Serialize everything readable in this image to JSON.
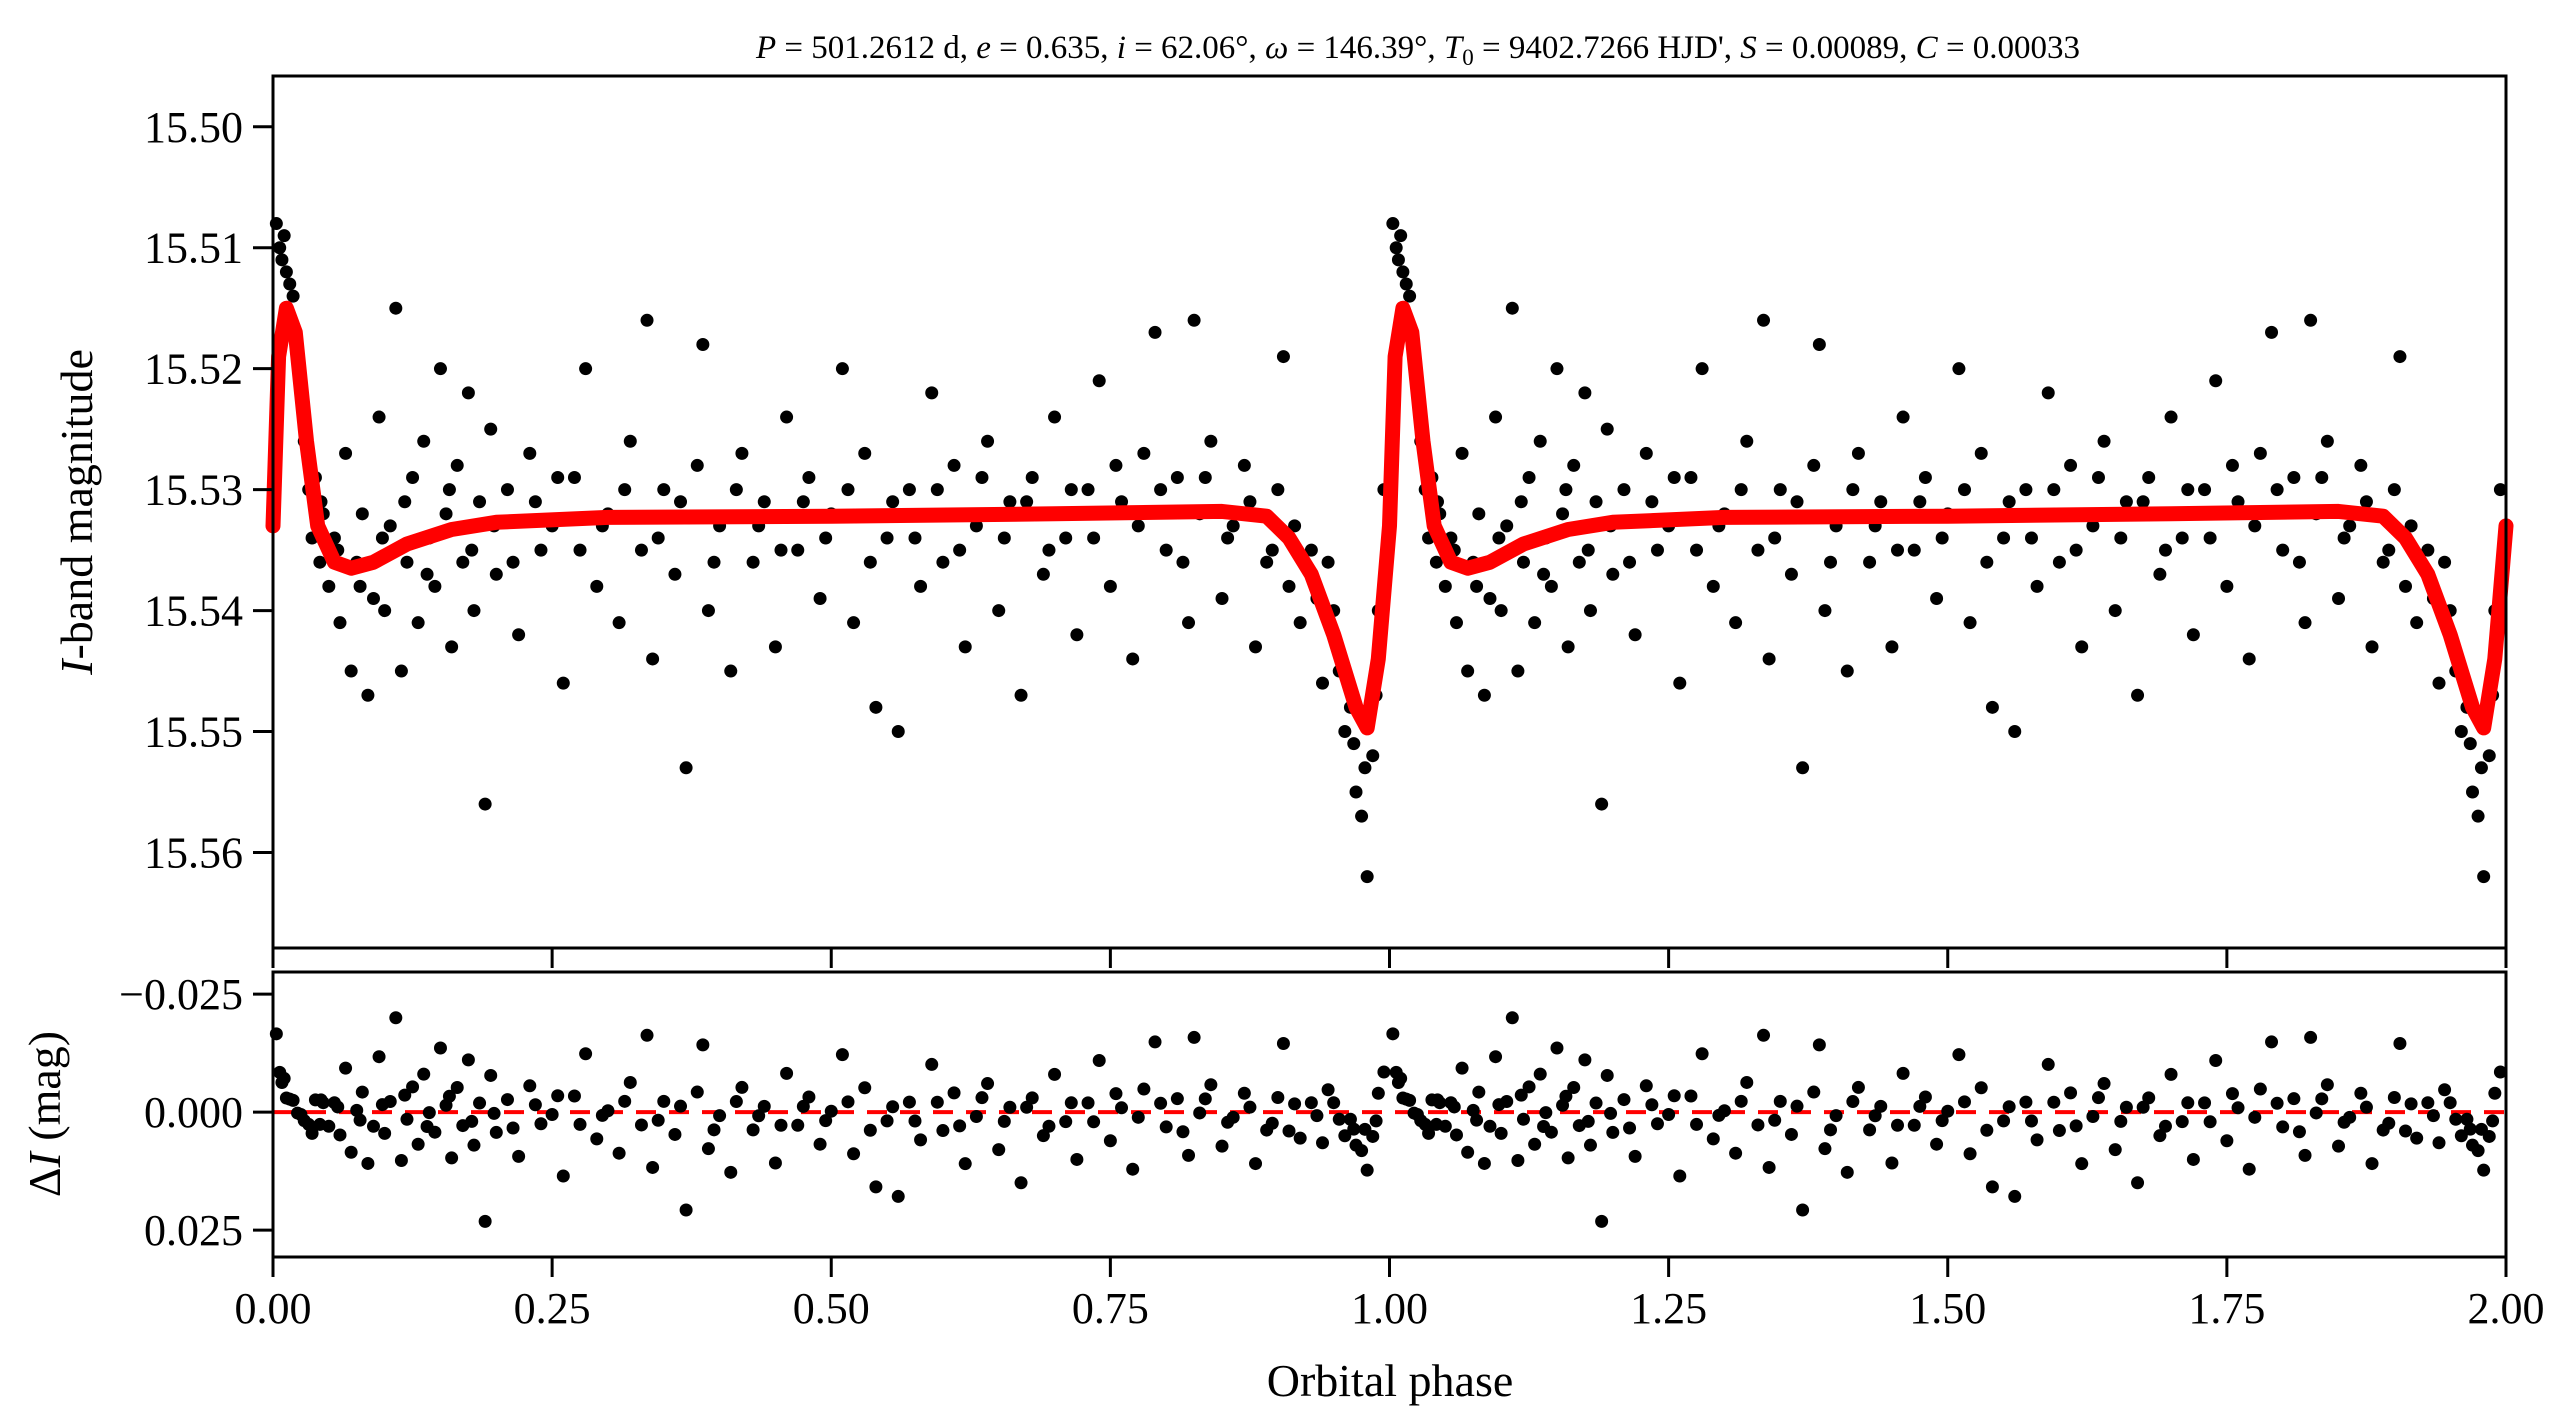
{
  "chart_data": [
    {
      "type": "scatter",
      "panel": "light-curve",
      "title_parts": [
        {
          "t": "P",
          "i": true
        },
        {
          "t": " = 501.2612 d, "
        },
        {
          "t": "e",
          "i": true
        },
        {
          "t": " = 0.635, "
        },
        {
          "t": "i",
          "i": true
        },
        {
          "t": " = 62.06°, "
        },
        {
          "t": "ω",
          "i": true
        },
        {
          "t": " = 146.39°, "
        },
        {
          "t": "T",
          "i": true
        },
        {
          "t": "0",
          "sub": true
        },
        {
          "t": " = 9402.7266 HJD', "
        },
        {
          "t": "S",
          "i": true
        },
        {
          "t": " = 0.00089, "
        },
        {
          "t": "C",
          "i": true
        },
        {
          "t": " = 0.00033"
        }
      ],
      "ylabel_italic": "I",
      "ylabel_rest": "-band magnitude",
      "xlim": [
        0,
        2
      ],
      "ylim": [
        15.5679,
        15.4958
      ],
      "y_inverted": true,
      "yticks": [
        15.5,
        15.51,
        15.52,
        15.53,
        15.54,
        15.55,
        15.56
      ],
      "ytick_labels": [
        "15.50",
        "15.51",
        "15.52",
        "15.53",
        "15.54",
        "15.55",
        "15.56"
      ],
      "xticks": [
        0,
        0.25,
        0.5,
        0.75,
        1.0,
        1.25,
        1.5,
        1.75,
        2.0
      ],
      "point_color": "#000000",
      "model_color": "#ff0000",
      "phase_repeat": [
        0,
        1
      ],
      "observations": [
        [
          0.003,
          15.508
        ],
        [
          0.006,
          15.51
        ],
        [
          0.008,
          15.511
        ],
        [
          0.01,
          15.509
        ],
        [
          0.012,
          15.512
        ],
        [
          0.015,
          15.513
        ],
        [
          0.018,
          15.514
        ],
        [
          0.022,
          15.519
        ],
        [
          0.025,
          15.522
        ],
        [
          0.028,
          15.526
        ],
        [
          0.032,
          15.53
        ],
        [
          0.035,
          15.534
        ],
        [
          0.038,
          15.529
        ],
        [
          0.042,
          15.536
        ],
        [
          0.045,
          15.532
        ],
        [
          0.05,
          15.538
        ],
        [
          0.055,
          15.534
        ],
        [
          0.06,
          15.541
        ],
        [
          0.065,
          15.527
        ],
        [
          0.07,
          15.545
        ],
        [
          0.075,
          15.536
        ],
        [
          0.08,
          15.532
        ],
        [
          0.085,
          15.547
        ],
        [
          0.09,
          15.539
        ],
        [
          0.095,
          15.524
        ],
        [
          0.1,
          15.54
        ],
        [
          0.105,
          15.533
        ],
        [
          0.11,
          15.515
        ],
        [
          0.115,
          15.545
        ],
        [
          0.12,
          15.536
        ],
        [
          0.125,
          15.529
        ],
        [
          0.13,
          15.541
        ],
        [
          0.135,
          15.526
        ],
        [
          0.14,
          15.534
        ],
        [
          0.145,
          15.538
        ],
        [
          0.15,
          15.52
        ],
        [
          0.155,
          15.532
        ],
        [
          0.16,
          15.543
        ],
        [
          0.165,
          15.528
        ],
        [
          0.17,
          15.536
        ],
        [
          0.175,
          15.522
        ],
        [
          0.18,
          15.54
        ],
        [
          0.185,
          15.531
        ],
        [
          0.19,
          15.556
        ],
        [
          0.195,
          15.525
        ],
        [
          0.2,
          15.537
        ],
        [
          0.21,
          15.53
        ],
        [
          0.22,
          15.542
        ],
        [
          0.23,
          15.527
        ],
        [
          0.24,
          15.535
        ],
        [
          0.25,
          15.533
        ],
        [
          0.26,
          15.546
        ],
        [
          0.27,
          15.529
        ],
        [
          0.28,
          15.52
        ],
        [
          0.29,
          15.538
        ],
        [
          0.3,
          15.532
        ],
        [
          0.31,
          15.541
        ],
        [
          0.32,
          15.526
        ],
        [
          0.33,
          15.535
        ],
        [
          0.335,
          15.516
        ],
        [
          0.34,
          15.544
        ],
        [
          0.35,
          15.53
        ],
        [
          0.36,
          15.537
        ],
        [
          0.37,
          15.553
        ],
        [
          0.38,
          15.528
        ],
        [
          0.385,
          15.518
        ],
        [
          0.39,
          15.54
        ],
        [
          0.4,
          15.533
        ],
        [
          0.41,
          15.545
        ],
        [
          0.42,
          15.527
        ],
        [
          0.43,
          15.536
        ],
        [
          0.44,
          15.531
        ],
        [
          0.45,
          15.543
        ],
        [
          0.46,
          15.524
        ],
        [
          0.47,
          15.535
        ],
        [
          0.48,
          15.529
        ],
        [
          0.49,
          15.539
        ],
        [
          0.5,
          15.532
        ],
        [
          0.51,
          15.52
        ],
        [
          0.52,
          15.541
        ],
        [
          0.53,
          15.527
        ],
        [
          0.54,
          15.548
        ],
        [
          0.55,
          15.534
        ],
        [
          0.56,
          15.55
        ],
        [
          0.57,
          15.53
        ],
        [
          0.58,
          15.538
        ],
        [
          0.59,
          15.522
        ],
        [
          0.6,
          15.536
        ],
        [
          0.61,
          15.528
        ],
        [
          0.62,
          15.543
        ],
        [
          0.63,
          15.533
        ],
        [
          0.64,
          15.526
        ],
        [
          0.65,
          15.54
        ],
        [
          0.66,
          15.531
        ],
        [
          0.67,
          15.547
        ],
        [
          0.68,
          15.529
        ],
        [
          0.69,
          15.537
        ],
        [
          0.7,
          15.524
        ],
        [
          0.71,
          15.534
        ],
        [
          0.72,
          15.542
        ],
        [
          0.73,
          15.53
        ],
        [
          0.74,
          15.521
        ],
        [
          0.75,
          15.538
        ],
        [
          0.76,
          15.531
        ],
        [
          0.77,
          15.544
        ],
        [
          0.78,
          15.527
        ],
        [
          0.79,
          15.517
        ],
        [
          0.8,
          15.535
        ],
        [
          0.81,
          15.529
        ],
        [
          0.82,
          15.541
        ],
        [
          0.825,
          15.516
        ],
        [
          0.83,
          15.532
        ],
        [
          0.84,
          15.526
        ],
        [
          0.85,
          15.539
        ],
        [
          0.86,
          15.533
        ],
        [
          0.87,
          15.528
        ],
        [
          0.88,
          15.543
        ],
        [
          0.89,
          15.536
        ],
        [
          0.9,
          15.53
        ],
        [
          0.905,
          15.519
        ],
        [
          0.91,
          15.538
        ],
        [
          0.92,
          15.541
        ],
        [
          0.93,
          15.535
        ],
        [
          0.94,
          15.546
        ],
        [
          0.95,
          15.54
        ],
        [
          0.96,
          15.55
        ],
        [
          0.965,
          15.548
        ],
        [
          0.97,
          15.555
        ],
        [
          0.975,
          15.557
        ],
        [
          0.98,
          15.562
        ],
        [
          0.985,
          15.552
        ],
        [
          0.99,
          15.54
        ],
        [
          0.995,
          15.53
        ],
        [
          0.043,
          15.531
        ],
        [
          0.058,
          15.535
        ],
        [
          0.078,
          15.538
        ],
        [
          0.098,
          15.534
        ],
        [
          0.118,
          15.531
        ],
        [
          0.138,
          15.537
        ],
        [
          0.158,
          15.53
        ],
        [
          0.178,
          15.535
        ],
        [
          0.198,
          15.533
        ],
        [
          0.215,
          15.536
        ],
        [
          0.235,
          15.531
        ],
        [
          0.255,
          15.529
        ],
        [
          0.275,
          15.535
        ],
        [
          0.295,
          15.533
        ],
        [
          0.315,
          15.53
        ],
        [
          0.345,
          15.534
        ],
        [
          0.365,
          15.531
        ],
        [
          0.395,
          15.536
        ],
        [
          0.415,
          15.53
        ],
        [
          0.435,
          15.533
        ],
        [
          0.455,
          15.535
        ],
        [
          0.475,
          15.531
        ],
        [
          0.495,
          15.534
        ],
        [
          0.515,
          15.53
        ],
        [
          0.535,
          15.536
        ],
        [
          0.555,
          15.531
        ],
        [
          0.575,
          15.534
        ],
        [
          0.595,
          15.53
        ],
        [
          0.615,
          15.535
        ],
        [
          0.635,
          15.529
        ],
        [
          0.655,
          15.534
        ],
        [
          0.675,
          15.531
        ],
        [
          0.695,
          15.535
        ],
        [
          0.715,
          15.53
        ],
        [
          0.735,
          15.534
        ],
        [
          0.755,
          15.528
        ],
        [
          0.775,
          15.533
        ],
        [
          0.795,
          15.53
        ],
        [
          0.815,
          15.536
        ],
        [
          0.835,
          15.529
        ],
        [
          0.855,
          15.534
        ],
        [
          0.875,
          15.531
        ],
        [
          0.895,
          15.535
        ],
        [
          0.915,
          15.533
        ],
        [
          0.935,
          15.539
        ],
        [
          0.945,
          15.536
        ],
        [
          0.955,
          15.545
        ],
        [
          0.968,
          15.551
        ],
        [
          0.978,
          15.553
        ],
        [
          0.988,
          15.547
        ]
      ],
      "model": [
        [
          0.0,
          15.533
        ],
        [
          0.005,
          15.519
        ],
        [
          0.012,
          15.515
        ],
        [
          0.02,
          15.517
        ],
        [
          0.03,
          15.526
        ],
        [
          0.04,
          15.533
        ],
        [
          0.055,
          15.536
        ],
        [
          0.07,
          15.5365
        ],
        [
          0.09,
          15.536
        ],
        [
          0.12,
          15.5345
        ],
        [
          0.16,
          15.5333
        ],
        [
          0.2,
          15.5327
        ],
        [
          0.3,
          15.5323
        ],
        [
          0.5,
          15.5322
        ],
        [
          0.7,
          15.532
        ],
        [
          0.85,
          15.5318
        ],
        [
          0.89,
          15.5322
        ],
        [
          0.91,
          15.534
        ],
        [
          0.93,
          15.537
        ],
        [
          0.95,
          15.542
        ],
        [
          0.97,
          15.548
        ],
        [
          0.98,
          15.5497
        ],
        [
          0.99,
          15.544
        ],
        [
          1.0,
          15.533
        ]
      ]
    },
    {
      "type": "scatter",
      "panel": "residuals",
      "ylabel_italic": "I",
      "ylabel_prefix": "Δ",
      "ylabel_rest": " (mag)",
      "xlabel": "Orbital phase",
      "xlim": [
        0,
        2
      ],
      "ylim": [
        0.0307,
        -0.0297
      ],
      "y_inverted": true,
      "yticks": [
        -0.025,
        0.0,
        0.025
      ],
      "ytick_labels": [
        "−0.025",
        "0.000",
        "0.025"
      ],
      "xticks": [
        0,
        0.25,
        0.5,
        0.75,
        1.0,
        1.25,
        1.5,
        1.75,
        2.0
      ],
      "xtick_labels": [
        "0.00",
        "0.25",
        "0.50",
        "0.75",
        "1.00",
        "1.25",
        "1.50",
        "1.75",
        "2.00"
      ],
      "residuals": "observations minus model",
      "zero_line": 0.0,
      "zero_line_style": "dashed",
      "zero_line_color": "#ff0000"
    }
  ]
}
